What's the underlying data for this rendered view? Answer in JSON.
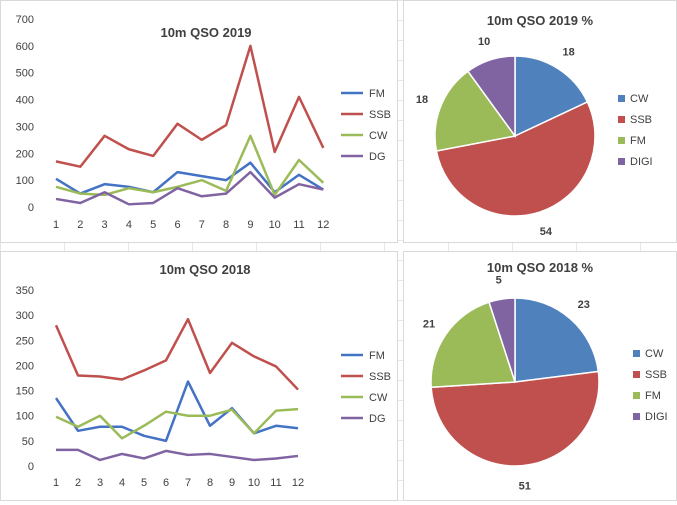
{
  "chart_data": [
    {
      "type": "line",
      "title": "10m QSO 2019",
      "categories": [
        "1",
        "2",
        "3",
        "4",
        "5",
        "6",
        "7",
        "8",
        "9",
        "10",
        "11",
        "12"
      ],
      "ylim": [
        0,
        700
      ],
      "yticks": [
        0,
        100,
        200,
        300,
        400,
        500,
        600,
        700
      ],
      "grid": false,
      "legend": "right",
      "series": [
        {
          "name": "FM",
          "color": "#4472c4",
          "values": [
            105,
            50,
            85,
            75,
            55,
            130,
            115,
            100,
            165,
            55,
            120,
            65
          ]
        },
        {
          "name": "SSB",
          "color": "#c0504d",
          "values": [
            170,
            150,
            265,
            215,
            190,
            310,
            250,
            305,
            600,
            205,
            410,
            220
          ]
        },
        {
          "name": "CW",
          "color": "#9bbb59",
          "values": [
            75,
            50,
            45,
            70,
            55,
            75,
            100,
            60,
            265,
            45,
            175,
            90
          ]
        },
        {
          "name": "DG",
          "color": "#8064a2",
          "values": [
            30,
            15,
            55,
            10,
            15,
            70,
            40,
            50,
            130,
            35,
            85,
            65
          ]
        }
      ]
    },
    {
      "type": "pie",
      "title": "10m QSO 2019 %",
      "legend": "right",
      "slices": [
        {
          "label": "CW",
          "value": 18,
          "color": "#4f81bd"
        },
        {
          "label": "SSB",
          "value": 54,
          "color": "#c0504d"
        },
        {
          "label": "FM",
          "value": 18,
          "color": "#9bbb59"
        },
        {
          "label": "DIGI",
          "value": 10,
          "color": "#8064a2"
        }
      ]
    },
    {
      "type": "line",
      "title": "10m QSO 2018",
      "categories": [
        "1",
        "2",
        "3",
        "4",
        "5",
        "6",
        "7",
        "8",
        "9",
        "10",
        "11",
        "12"
      ],
      "ylim": [
        0,
        350
      ],
      "yticks": [
        0,
        50,
        100,
        150,
        200,
        250,
        300,
        350
      ],
      "grid": false,
      "legend": "right",
      "series": [
        {
          "name": "FM",
          "color": "#4472c4",
          "values": [
            135,
            70,
            78,
            78,
            60,
            50,
            168,
            80,
            115,
            65,
            80,
            75
          ]
        },
        {
          "name": "SSB",
          "color": "#c0504d",
          "values": [
            280,
            180,
            178,
            172,
            190,
            210,
            292,
            185,
            245,
            218,
            198,
            152
          ]
        },
        {
          "name": "CW",
          "color": "#9bbb59",
          "values": [
            98,
            78,
            100,
            55,
            80,
            108,
            100,
            100,
            112,
            65,
            110,
            113
          ]
        },
        {
          "name": "DG",
          "color": "#8064a2",
          "values": [
            32,
            32,
            12,
            24,
            15,
            30,
            22,
            24,
            18,
            12,
            15,
            20
          ]
        }
      ]
    },
    {
      "type": "pie",
      "title": "10m QSO 2018 %",
      "legend": "right",
      "slices": [
        {
          "label": "CW",
          "value": 23,
          "color": "#4f81bd"
        },
        {
          "label": "SSB",
          "value": 51,
          "color": "#c0504d"
        },
        {
          "label": "FM",
          "value": 21,
          "color": "#9bbb59"
        },
        {
          "label": "DIGI",
          "value": 5,
          "color": "#8064a2"
        }
      ]
    }
  ]
}
